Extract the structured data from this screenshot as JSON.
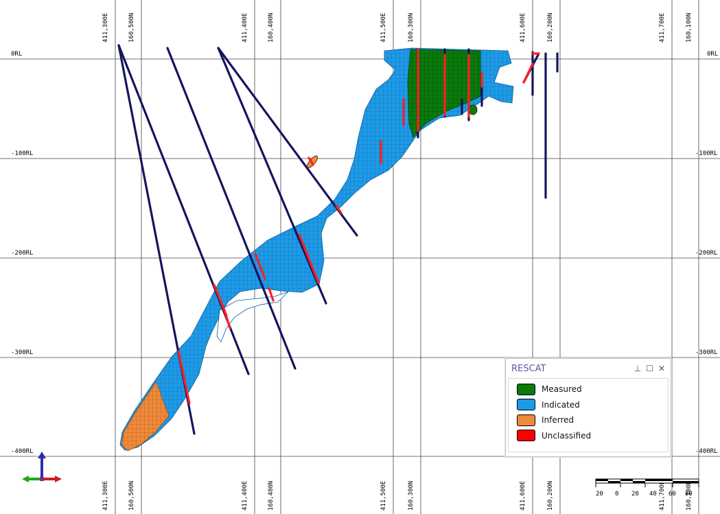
{
  "easting_labels": [
    "411,300E",
    "411,400E",
    "411,500E",
    "411,600E",
    "411,700E"
  ],
  "northing_labels": [
    "160,500N",
    "160,400N",
    "160,300N",
    "160,200N",
    "160,100N"
  ],
  "rl_labels": [
    "0RL",
    "-100RL",
    "-200RL",
    "-300RL",
    "-400RL"
  ],
  "legend": {
    "title": "RESCAT",
    "pin_icon": "pin-icon",
    "maximize_icon": "maximize-icon",
    "close_icon": "close-icon",
    "items": [
      {
        "label": "Measured",
        "color": "#0b7a0b"
      },
      {
        "label": "Indicated",
        "color": "#1e9be8"
      },
      {
        "label": "Inferred",
        "color": "#f08a3c"
      },
      {
        "label": "Unclassified",
        "color": "#ff0000"
      }
    ]
  },
  "scale_bar": {
    "tick_labels": [
      "20",
      "0",
      "20",
      "40",
      "60",
      "80"
    ]
  },
  "colors": {
    "drillhole": "#15155e",
    "intercept": "#ff2020",
    "grid": "#404040",
    "measured": "#0b7a0b",
    "indicated": "#1e9be8",
    "inferred": "#f08a3c"
  }
}
